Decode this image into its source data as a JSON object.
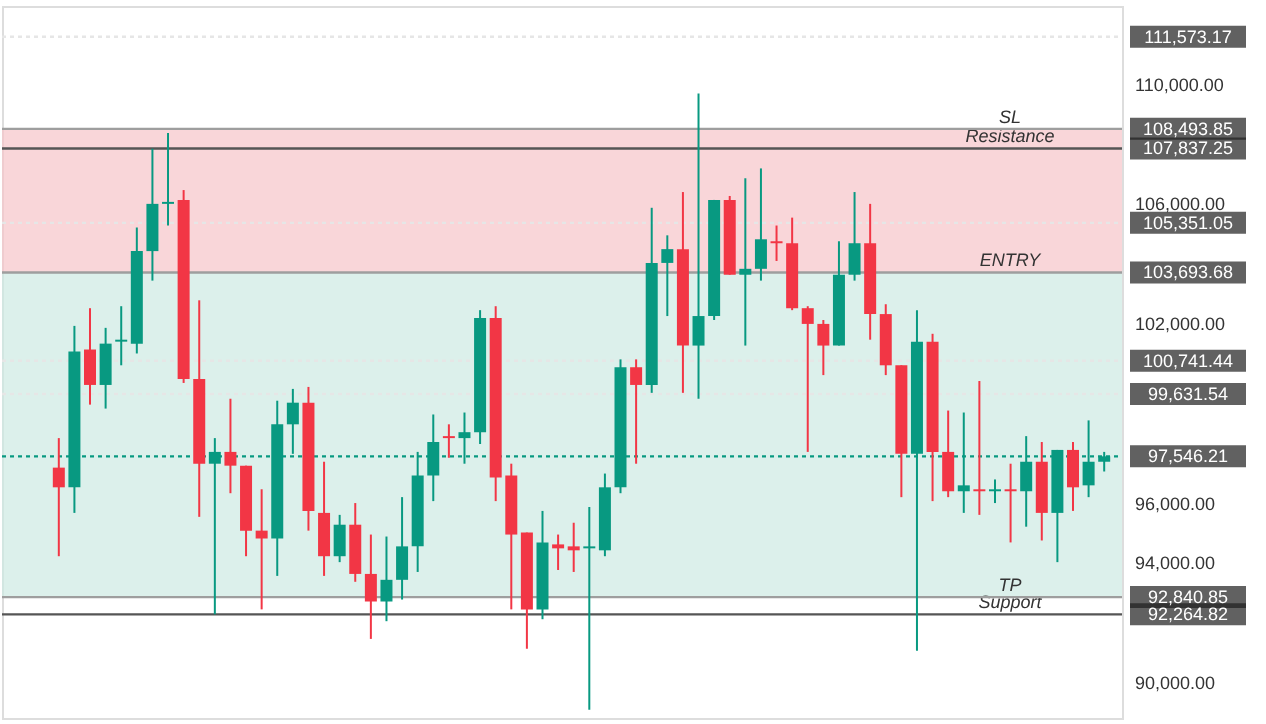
{
  "chart_data": {
    "type": "candlestick",
    "categories": [
      null,
      null,
      null,
      null,
      null,
      null,
      null,
      null,
      null,
      null,
      null,
      null,
      null,
      null,
      null,
      null,
      null,
      null,
      null,
      null,
      null,
      null,
      null,
      null,
      null,
      null,
      null,
      null,
      null,
      null,
      null,
      null,
      null,
      null,
      null,
      null,
      null,
      null,
      null,
      null,
      null,
      null,
      null,
      null,
      null,
      null,
      null,
      null,
      null,
      null,
      null,
      null,
      null,
      null,
      null,
      null,
      null,
      null,
      null,
      null,
      null,
      null,
      null,
      null,
      null,
      null,
      null,
      null
    ],
    "ohlc": [
      [
        97169,
        98156,
        94208,
        96511
      ],
      [
        96511,
        101907,
        95656,
        101051
      ],
      [
        101117,
        102499,
        99275,
        99933
      ],
      [
        99933,
        101841,
        99143,
        101314
      ],
      [
        101380,
        102565,
        100590,
        101446
      ],
      [
        101314,
        105196,
        100985,
        104407
      ],
      [
        104407,
        107829,
        103420,
        105986
      ],
      [
        105986,
        108355,
        105262,
        106052
      ],
      [
        106118,
        106447,
        100000,
        100130
      ],
      [
        100130,
        102762,
        95524,
        97300
      ],
      [
        97300,
        98156,
        92264,
        97695
      ],
      [
        97695,
        99472,
        96314,
        97235
      ],
      [
        97235,
        97235,
        94208,
        95063
      ],
      [
        95063,
        96446,
        92431,
        94800
      ],
      [
        94800,
        99406,
        93550,
        98617
      ],
      [
        98617,
        99801,
        97630,
        99340
      ],
      [
        99340,
        99867,
        95063,
        95722
      ],
      [
        95656,
        97366,
        93550,
        94208
      ],
      [
        94208,
        95590,
        94010,
        95261
      ],
      [
        95261,
        95985,
        93353,
        93616
      ],
      [
        93616,
        94932,
        91444,
        92694
      ],
      [
        92694,
        94866,
        92036,
        93419
      ],
      [
        93419,
        96183,
        92760,
        94537
      ],
      [
        94537,
        97695,
        93682,
        96906
      ],
      [
        96906,
        98946,
        96050,
        98025
      ],
      [
        98222,
        98617,
        97498,
        98156
      ],
      [
        98156,
        99011,
        97300,
        98354
      ],
      [
        98354,
        102433,
        97959,
        102170
      ],
      [
        102170,
        102565,
        96050,
        96840
      ],
      [
        96906,
        97301,
        92431,
        94932
      ],
      [
        94998,
        94998,
        91115,
        92431
      ],
      [
        92431,
        95722,
        92102,
        94669
      ],
      [
        94603,
        94932,
        93748,
        94471
      ],
      [
        94537,
        95327,
        93682,
        94405
      ],
      [
        94471,
        95853,
        89076,
        94537
      ],
      [
        94405,
        96971,
        94208,
        96511
      ],
      [
        96511,
        100788,
        96314,
        100525
      ],
      [
        100525,
        100788,
        97300,
        99933
      ],
      [
        99933,
        105855,
        99669,
        104012
      ],
      [
        104012,
        104934,
        102236,
        104473
      ],
      [
        104473,
        106381,
        99669,
        101249
      ],
      [
        101249,
        109671,
        99472,
        102236
      ],
      [
        102236,
        106118,
        102104,
        106118
      ],
      [
        106118,
        106250,
        103617,
        103617
      ],
      [
        103617,
        106842,
        101249,
        103815
      ],
      [
        103815,
        107171,
        103420,
        104802
      ],
      [
        104736,
        105262,
        104078,
        104670
      ],
      [
        104670,
        105526,
        102433,
        102499
      ],
      [
        102499,
        102565,
        97695,
        101973
      ],
      [
        101973,
        102104,
        100262,
        101249
      ],
      [
        101249,
        104736,
        101249,
        103617
      ],
      [
        103617,
        106381,
        103420,
        104670
      ],
      [
        104670,
        105986,
        101446,
        102302
      ],
      [
        102302,
        102631,
        100262,
        100590
      ],
      [
        100590,
        100590,
        96182,
        97630
      ],
      [
        97630,
        102433,
        91050,
        101380
      ],
      [
        101380,
        101643,
        96050,
        97695
      ],
      [
        97695,
        99077,
        96182,
        96379
      ],
      [
        96379,
        99011,
        95656,
        96577
      ],
      [
        96445,
        100064,
        95590,
        96379
      ],
      [
        96379,
        96774,
        95985,
        96445
      ],
      [
        96445,
        97300,
        94669,
        96379
      ],
      [
        96379,
        98222,
        95195,
        97366
      ],
      [
        97366,
        98025,
        94734,
        95656
      ],
      [
        95656,
        97761,
        94010,
        97761
      ],
      [
        97761,
        98025,
        95722,
        96511
      ],
      [
        96577,
        98748,
        96182,
        97366
      ],
      [
        97366,
        97695,
        97040,
        97546.21
      ]
    ],
    "colors": [
      "#f23645",
      "#089981",
      "#f23645",
      "#089981",
      "#089981",
      "#089981",
      "#089981",
      "#089981",
      "#f23645",
      "#f23645",
      "#089981",
      "#f23645",
      "#f23645",
      "#f23645",
      "#089981",
      "#089981",
      "#f23645",
      "#f23645",
      "#089981",
      "#f23645",
      "#f23645",
      "#089981",
      "#089981",
      "#089981",
      "#089981",
      "#f23645",
      "#089981",
      "#089981",
      "#f23645",
      "#f23645",
      "#f23645",
      "#089981",
      "#f23645",
      "#f23645",
      "#089981",
      "#089981",
      "#089981",
      "#f23645",
      "#089981",
      "#089981",
      "#f23645",
      "#089981",
      "#089981",
      "#f23645",
      "#089981",
      "#089981",
      "#f23645",
      "#f23645",
      "#f23645",
      "#f23645",
      "#089981",
      "#089981",
      "#f23645",
      "#f23645",
      "#f23645",
      "#089981",
      "#f23645",
      "#f23645",
      "#089981",
      "#f23645",
      "#089981",
      "#f23645",
      "#089981",
      "#f23645",
      "#089981",
      "#f23645",
      "#089981",
      "#089981"
    ],
    "ylim": [
      88800,
      112600
    ],
    "yticks": [
      {
        "value": 90000,
        "label": "90,000.00"
      },
      {
        "value": 94000,
        "label": "94,000.00"
      },
      {
        "value": 96000,
        "label": "96,000.00"
      },
      {
        "value": 102000,
        "label": "102,000.00"
      },
      {
        "value": 106000,
        "label": "106,000.00"
      },
      {
        "value": 110000,
        "label": "110,000.00"
      }
    ],
    "tick_labels": "y",
    "grid": false,
    "bands": [
      {
        "axis": "y",
        "from": 103693.68,
        "to": 108493.85,
        "color": "#f7c5c9"
      },
      {
        "axis": "y",
        "from": 92840.85,
        "to": 103693.68,
        "color": "#cde9e2"
      }
    ],
    "ref_lines": [
      {
        "axis": "y",
        "value": 107837.25,
        "label": "Resistance",
        "color": "#555555"
      },
      {
        "axis": "y",
        "value": 92264.82,
        "label": "Support",
        "color": "#555555"
      },
      {
        "axis": "y",
        "value": 108493.85,
        "label": "SL",
        "color": "#9e9e9e"
      },
      {
        "axis": "y",
        "value": 103693.68,
        "label": "ENTRY",
        "color": "#9e9e9e"
      },
      {
        "axis": "y",
        "value": 92840.85,
        "label": "TP",
        "color": "#9e9e9e"
      },
      {
        "axis": "y",
        "value": 111573.17,
        "label": null,
        "color": "#e6e6e6",
        "line_style": "dotted"
      },
      {
        "axis": "y",
        "value": 105351.05,
        "label": null,
        "color": "#e6e6e6",
        "line_style": "dotted"
      },
      {
        "axis": "y",
        "value": 100741.44,
        "label": null,
        "color": "#e6e6e6",
        "line_style": "dotted"
      },
      {
        "axis": "y",
        "value": 99631.54,
        "label": null,
        "color": "#e6e6e6",
        "line_style": "dotted"
      },
      {
        "axis": "y",
        "value": 97546.21,
        "label": null,
        "color": "#089981",
        "line_style": "dotted"
      }
    ],
    "annotations": [
      "107,837.25",
      "92,264.82",
      "108,493.85",
      "103,693.68",
      "92,840.85",
      "111,573.17",
      "105,351.05",
      "100,741.44",
      "99,631.54",
      "97,546.21"
    ]
  }
}
